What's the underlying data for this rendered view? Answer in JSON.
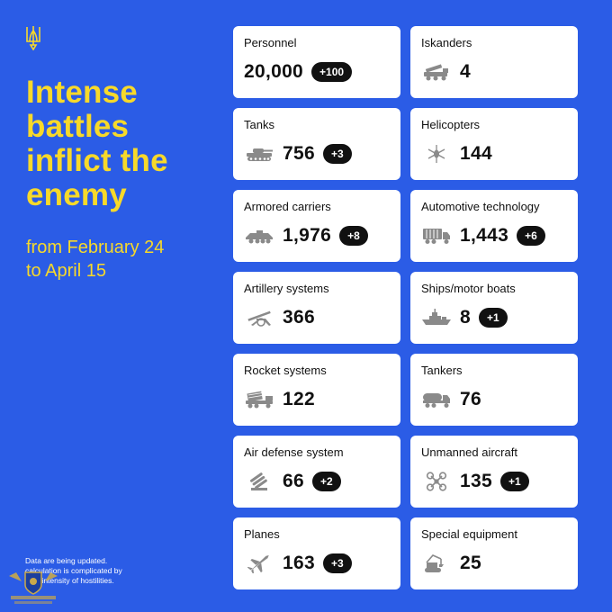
{
  "headline": "Intense\nbattles\ninflict the\nenemy",
  "period": {
    "line1": "from February 24",
    "line2": "to April 15"
  },
  "footnote": {
    "line1": "Data are being updated.",
    "line2": "calculation is complicated by",
    "line3": "high intensity of hostilities."
  },
  "colors": {
    "background": "#2b5ce6",
    "accent": "#f7d92a",
    "card": "#ffffff",
    "badge": "#111111"
  },
  "cards": [
    {
      "label": "Personnel",
      "value": "20,000",
      "delta": "+100",
      "icon": "none"
    },
    {
      "label": "Iskanders",
      "value": "4",
      "delta": "",
      "icon": "missile-launcher-icon"
    },
    {
      "label": "Tanks",
      "value": "756",
      "delta": "+3",
      "icon": "tank-icon"
    },
    {
      "label": "Helicopters",
      "value": "144",
      "delta": "",
      "icon": "helicopter-icon"
    },
    {
      "label": "Armored carriers",
      "value": "1,976",
      "delta": "+8",
      "icon": "armored-carrier-icon"
    },
    {
      "label": "Automotive technology",
      "value": "1,443",
      "delta": "+6",
      "icon": "truck-icon"
    },
    {
      "label": "Artillery systems",
      "value": "366",
      "delta": "",
      "icon": "artillery-icon"
    },
    {
      "label": "Ships/motor boats",
      "value": "8",
      "delta": "+1",
      "icon": "ship-icon"
    },
    {
      "label": "Rocket systems",
      "value": "122",
      "delta": "",
      "icon": "rocket-launcher-icon"
    },
    {
      "label": "Tankers",
      "value": "76",
      "delta": "",
      "icon": "tanker-truck-icon"
    },
    {
      "label": "Air defense system",
      "value": "66",
      "delta": "+2",
      "icon": "air-defense-icon"
    },
    {
      "label": "Unmanned aircraft",
      "value": "135",
      "delta": "+1",
      "icon": "drone-icon"
    },
    {
      "label": "Planes",
      "value": "163",
      "delta": "+3",
      "icon": "plane-icon"
    },
    {
      "label": "Special equipment",
      "value": "25",
      "delta": "",
      "icon": "excavator-icon"
    }
  ]
}
